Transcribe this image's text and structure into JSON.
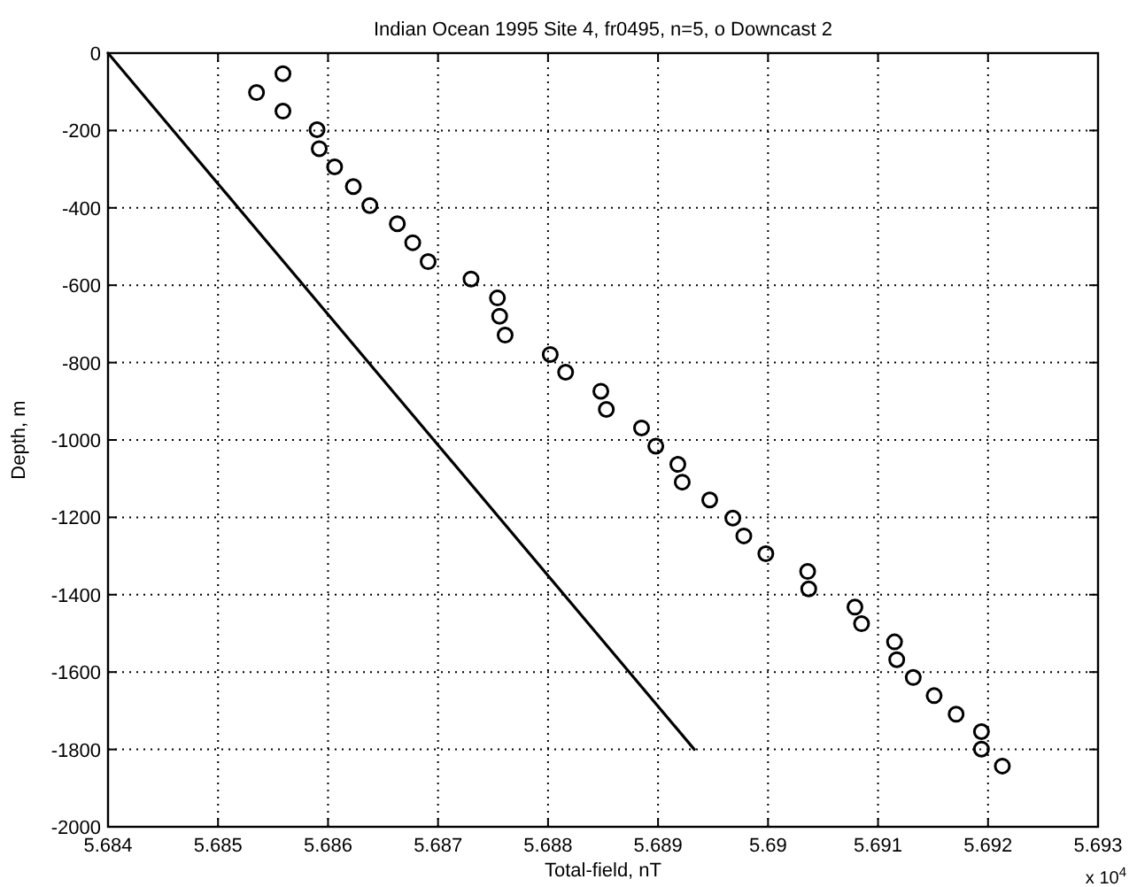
{
  "chart_data": {
    "title": "Indian Ocean 1995 Site 4, fr0495, n=5, o Downcast 2",
    "xlabel": "Total-field, nT",
    "ylabel": "Depth, m",
    "annotations": [
      "x 10$^{4}$"
    ],
    "xlim": [
      5.684,
      5.693
    ],
    "xticks": [
      5.684,
      5.685,
      5.686,
      5.687,
      5.688,
      5.689,
      {
        "value": 5.69,
        "label": "5.69"
      },
      5.691,
      5.692,
      5.693
    ],
    "ylim": [
      -2000,
      0
    ],
    "yticks": [
      -2000,
      -1800,
      -1600,
      -1400,
      -1200,
      -1000,
      -800,
      -600,
      -400,
      -200,
      0
    ],
    "grid": true,
    "type": "scatter",
    "series": [
      {
        "type": "line",
        "color": "#000000",
        "line_style": "solid",
        "x": [
          5.684,
          5.68933
        ],
        "values": [
          0,
          -1800
        ]
      },
      {
        "color": "#000000",
        "marker": "circle",
        "x": [
          5.68535,
          5.68559,
          5.68559,
          5.6859,
          5.68592,
          5.68606,
          5.68623,
          5.68638,
          5.68663,
          5.68677,
          5.68691,
          5.6873,
          5.68754,
          5.68756,
          5.68761,
          5.68802,
          5.68816,
          5.68848,
          5.68853,
          5.68885,
          5.68898,
          5.68918,
          5.68922,
          5.68947,
          5.68968,
          5.68978,
          5.68998,
          5.69036,
          5.69037,
          5.69079,
          5.69085,
          5.69115,
          5.69117,
          5.69132,
          5.69151,
          5.69171,
          5.69194,
          5.69194,
          5.69213
        ],
        "values": [
          -102,
          -53,
          -150,
          -198,
          -247,
          -294,
          -345,
          -394,
          -441,
          -490,
          -539,
          -584,
          -633,
          -680,
          -729,
          -779,
          -825,
          -874,
          -921,
          -969,
          -1016,
          -1063,
          -1109,
          -1155,
          -1202,
          -1248,
          -1294,
          -1340,
          -1385,
          -1432,
          -1475,
          -1522,
          -1568,
          -1614,
          -1661,
          -1709,
          -1754,
          -1799,
          -1843
        ]
      }
    ]
  }
}
